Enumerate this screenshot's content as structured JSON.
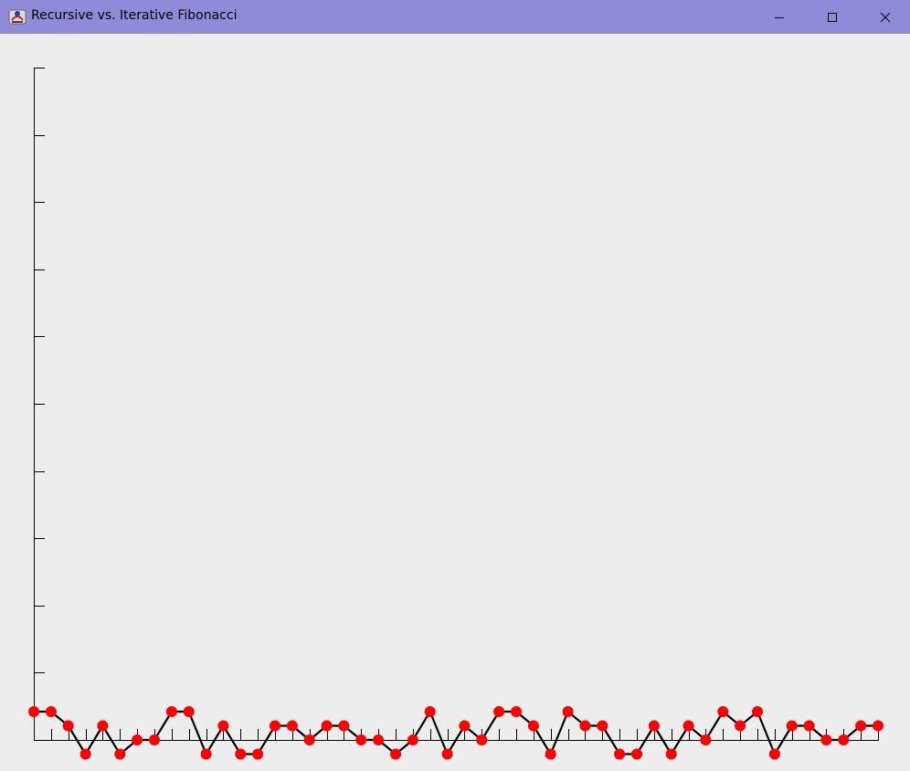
{
  "window": {
    "title": "Recursive vs. Iterative Fibonacci",
    "icon": "java-app-icon",
    "controls": [
      "minimize-icon",
      "maximize-icon",
      "close-icon"
    ]
  },
  "colors": {
    "titlebar": "#8f8bd9",
    "background": "#eeeded",
    "axis": "#000000",
    "line": "#000000",
    "point": "#ff0000"
  },
  "chart_data": {
    "type": "line",
    "title": "",
    "xlabel": "",
    "ylabel": "",
    "x_count": 50,
    "y_ticks": 11,
    "grid": false,
    "legend": "none",
    "ylim": [
      -1.5,
      40
    ],
    "x": [
      0,
      1,
      2,
      3,
      4,
      5,
      6,
      7,
      8,
      9,
      10,
      11,
      12,
      13,
      14,
      15,
      16,
      17,
      18,
      19,
      20,
      21,
      22,
      23,
      24,
      25,
      26,
      27,
      28,
      29,
      30,
      31,
      32,
      33,
      34,
      35,
      36,
      37,
      38,
      39,
      40,
      41,
      42,
      43,
      44,
      45,
      46,
      47,
      48,
      49
    ],
    "series": [
      {
        "values": [
          2,
          2,
          1,
          -1,
          1,
          -1,
          0,
          0,
          2,
          2,
          -1,
          1,
          -1,
          -1,
          1,
          1,
          0,
          1,
          1,
          0,
          0,
          -1,
          0,
          2,
          -1,
          1,
          0,
          2,
          2,
          1,
          -1,
          2,
          1,
          1,
          -1,
          -1,
          1,
          -1,
          1,
          0,
          2,
          1,
          2,
          -1,
          1,
          1,
          0,
          0,
          1,
          1
        ]
      }
    ]
  }
}
